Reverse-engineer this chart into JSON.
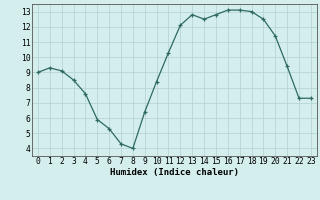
{
  "x": [
    0,
    1,
    2,
    3,
    4,
    5,
    6,
    7,
    8,
    9,
    10,
    11,
    12,
    13,
    14,
    15,
    16,
    17,
    18,
    19,
    20,
    21,
    22,
    23
  ],
  "y": [
    9,
    9.3,
    9.1,
    8.5,
    7.6,
    5.9,
    5.3,
    4.3,
    4.0,
    6.4,
    8.4,
    10.3,
    12.1,
    12.8,
    12.5,
    12.8,
    13.1,
    13.1,
    13.0,
    12.5,
    11.4,
    9.4,
    7.3,
    7.3
  ],
  "xlim": [
    -0.5,
    23.5
  ],
  "ylim": [
    3.5,
    13.5
  ],
  "yticks": [
    4,
    5,
    6,
    7,
    8,
    9,
    10,
    11,
    12,
    13
  ],
  "xticks": [
    0,
    1,
    2,
    3,
    4,
    5,
    6,
    7,
    8,
    9,
    10,
    11,
    12,
    13,
    14,
    15,
    16,
    17,
    18,
    19,
    20,
    21,
    22,
    23
  ],
  "xlabel": "Humidex (Indice chaleur)",
  "line_color": "#2e6b5e",
  "marker": "+",
  "bg_color": "#d4eeee",
  "grid_color": "#b8d4d4",
  "label_fontsize": 6.5,
  "tick_fontsize": 5.8
}
